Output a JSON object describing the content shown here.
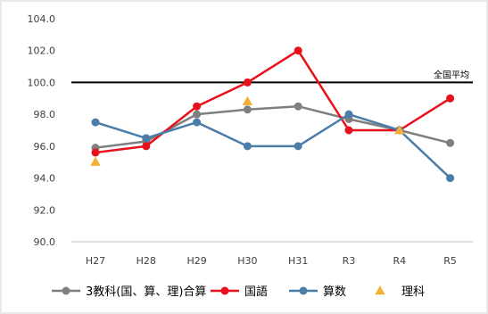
{
  "chart_data": {
    "type": "line",
    "categories": [
      "H27",
      "H28",
      "H29",
      "H30",
      "H31",
      "R3",
      "R4",
      "R5"
    ],
    "yticks": [
      "90.0",
      "92.0",
      "94.0",
      "96.0",
      "98.0",
      "100.0",
      "102.0",
      "104.0"
    ],
    "ylim": [
      90,
      104
    ],
    "grid": false,
    "legend_position": "bottom",
    "reference_line": {
      "label": "全国平均",
      "value": 100,
      "color": "#000000"
    },
    "series": [
      {
        "name": "3教科(国、算、理)合算",
        "kind": "line",
        "color": "#7f7f7f",
        "values": [
          95.9,
          96.3,
          98.0,
          98.3,
          98.5,
          97.7,
          97.0,
          96.2
        ]
      },
      {
        "name": "国語",
        "kind": "line",
        "color": "#e8101a",
        "values": [
          95.6,
          96.0,
          98.5,
          100.0,
          102.0,
          97.0,
          97.0,
          99.0
        ]
      },
      {
        "name": "算数",
        "kind": "line",
        "color": "#4a7ea8",
        "values": [
          97.5,
          96.5,
          97.5,
          96.0,
          96.0,
          98.0,
          97.0,
          94.0
        ]
      },
      {
        "name": "理科",
        "kind": "marker",
        "color": "#f2b134",
        "x": [
          "H27",
          "H30",
          "R4"
        ],
        "values": [
          95.0,
          98.8,
          97.0
        ]
      }
    ]
  }
}
